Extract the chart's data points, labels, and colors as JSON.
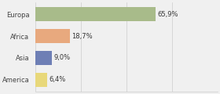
{
  "categories": [
    "Europa",
    "Africa",
    "Asia",
    "America"
  ],
  "values": [
    65.9,
    18.7,
    9.0,
    6.4
  ],
  "labels": [
    "65,9%",
    "18,7%",
    "9,0%",
    "6,4%"
  ],
  "bar_colors": [
    "#a8bb8a",
    "#e8a97e",
    "#6e7fb5",
    "#e8d87a"
  ],
  "background_color": "#f0f0f0",
  "xlim": [
    0,
    100
  ],
  "bar_height": 0.62,
  "label_fontsize": 6.0,
  "tick_fontsize": 6.0,
  "grid_color": "#cccccc",
  "grid_xticks": [
    0,
    25,
    50,
    75,
    100
  ]
}
